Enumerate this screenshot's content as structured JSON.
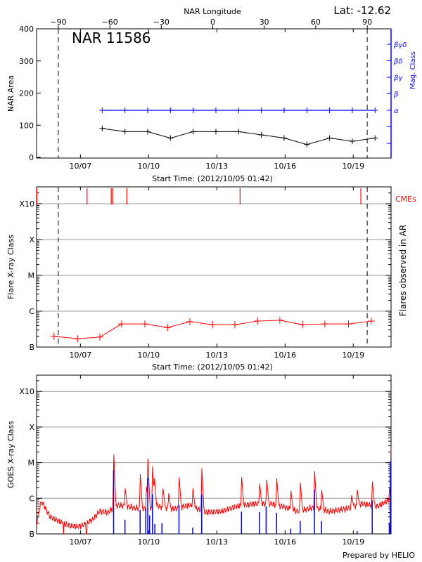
{
  "chart_data": [
    {
      "type": "line",
      "title": "NAR 11586",
      "annotation": "Lat: -12.62",
      "top_xlabel": "NAR Longitude",
      "top_xticks": [
        -90,
        -60,
        -30,
        0,
        30,
        60,
        90
      ],
      "limb_longitudes": [
        -90,
        90
      ],
      "xlabel": "Start Time: (2012/10/05 01:42)",
      "xticks": [
        "10/07 00:00",
        "10/10 00:00",
        "10/13 00:00",
        "10/16 00:00",
        "10/19 00:00"
      ],
      "xtick_labels": [
        "10/07",
        "10/10",
        "10/13",
        "10/16",
        "10/19"
      ],
      "ylabel": "NAR Area",
      "ylim": [
        0,
        400
      ],
      "yticks": [
        0,
        100,
        200,
        300,
        400
      ],
      "y2label": "Mag. Class",
      "y2_ticks": [
        "",
        "",
        "α",
        "β",
        "βγ",
        "βδ",
        "βγδ"
      ],
      "times": [
        "10/07 23:00",
        "10/08 23:00",
        "10/09 23:00",
        "10/10 23:00",
        "10/11 23:00",
        "10/12 23:00",
        "10/13 23:00",
        "10/14 23:00",
        "10/15 23:00",
        "10/16 23:00",
        "10/17 23:00",
        "10/18 23:00",
        "10/19 23:00"
      ],
      "series": [
        {
          "name": "NAR Area",
          "color": "#000000",
          "values": [
            90,
            80,
            80,
            60,
            80,
            80,
            80,
            70,
            60,
            40,
            60,
            50,
            60
          ]
        },
        {
          "name": "Mag. Class",
          "color": "#0000ff",
          "values": [
            "α",
            "α",
            "α",
            "α",
            "α",
            "α",
            "α",
            "α",
            "α",
            "α",
            "α",
            "α",
            "α"
          ]
        }
      ]
    },
    {
      "type": "line",
      "xlabel": "Start Time: (2012/10/05 01:42)",
      "xticks": [
        "10/07 00:00",
        "10/10 00:00",
        "10/13 00:00",
        "10/16 00:00",
        "10/19 00:00"
      ],
      "xtick_labels": [
        "10/07",
        "10/10",
        "10/13",
        "10/16",
        "10/19"
      ],
      "ylabel": "Flare X-ray Class",
      "y2label": "Flares observed in AR",
      "yscale": "log",
      "ytick_labels": [
        "B",
        "C",
        "M",
        "X",
        "X10"
      ],
      "grid": true,
      "cme_label": "CMEs",
      "cme_color": "#ff0000",
      "cme_times": [
        "10/05 02:00",
        "10/07 07:00",
        "10/08 08:30",
        "10/08 10:00",
        "10/09 01:00",
        "10/14 00:30",
        "10/19 08:00"
      ],
      "series_color": "#ff0000",
      "times": [
        "10/05 20:00",
        "10/06 21:00",
        "10/07 20:30",
        "10/08 19:30",
        "10/09 20:00",
        "10/10 20:00",
        "10/11 19:30",
        "10/12 19:30",
        "10/13 19:00",
        "10/14 19:00",
        "10/15 18:30",
        "10/16 18:30",
        "10/17 18:00",
        "10/18 19:00",
        "10/19 19:00"
      ],
      "flux": [
        2e-07,
        1.7e-07,
        1.9e-07,
        4.4e-07,
        4.4e-07,
        3.5e-07,
        5.1e-07,
        4.2e-07,
        4.2e-07,
        5.3e-07,
        5.6e-07,
        4.2e-07,
        4.4e-07,
        4.4e-07,
        5.3e-07
      ]
    },
    {
      "type": "line",
      "xticks": [
        "10/07 00:00",
        "10/10 00:00",
        "10/13 00:00",
        "10/16 00:00",
        "10/19 00:00"
      ],
      "xtick_labels": [
        "10/07",
        "10/10",
        "10/13",
        "10/16",
        "10/19"
      ],
      "ylabel": "GOES X-ray Class",
      "yscale": "log",
      "ytick_labels": [
        "B",
        "C",
        "M",
        "X",
        "X10"
      ],
      "grid": true,
      "credit": "Prepared by HELIO",
      "long_channel": {
        "color": "#ff0000",
        "baseline": [
          [
            "10/05 01:42",
            1.9e-07
          ],
          [
            "10/05 06:00",
            7.4e-07
          ],
          [
            "10/05 08:00",
            7.4e-07
          ],
          [
            "10/05 16:00",
            3e-07
          ],
          [
            "10/06 04:00",
            2.1e-07
          ],
          [
            "10/06 13:00",
            1.7e-07
          ],
          [
            "10/06 22:00",
            1.6e-07
          ],
          [
            "10/07 06:00",
            1.9e-07
          ],
          [
            "10/07 14:00",
            2.7e-07
          ],
          [
            "10/07 20:00",
            4.3e-07
          ],
          [
            "10/08 05:00",
            4e-07
          ],
          [
            "10/08 14:00",
            6.4e-07
          ],
          [
            "10/09 01:00",
            6e-07
          ],
          [
            "10/09 16:00",
            5e-07
          ],
          [
            "10/10 09:00",
            6e-07
          ],
          [
            "10/11 02:00",
            5e-07
          ],
          [
            "10/11 19:00",
            6.4e-07
          ],
          [
            "10/12 12:00",
            4e-07
          ],
          [
            "10/13 05:00",
            4.3e-07
          ],
          [
            "10/13 22:00",
            6e-07
          ],
          [
            "10/14 16:00",
            7e-07
          ],
          [
            "10/15 09:00",
            7e-07
          ],
          [
            "10/15 20:00",
            6e-07
          ],
          [
            "10/16 13:00",
            4.3e-07
          ],
          [
            "10/17 06:00",
            5.5e-07
          ],
          [
            "10/17 23:00",
            4.3e-07
          ],
          [
            "10/18 16:00",
            5e-07
          ],
          [
            "10/19 09:00",
            7e-07
          ],
          [
            "10/20 02:00",
            6e-07
          ],
          [
            "10/20 14:00",
            9e-07
          ]
        ],
        "peaks": [
          [
            "10/08 11:00",
            2.3e-05
          ],
          [
            "10/08 23:00",
            2.1e-06
          ],
          [
            "10/09 15:00",
            5.8e-06
          ],
          [
            "10/09 21:30",
            2.3e-06
          ],
          [
            "10/09 23:00",
            1.7e-05
          ],
          [
            "10/10 04:00",
            1e-05
          ],
          [
            "10/10 06:00",
            4.3e-06
          ],
          [
            "10/10 15:00",
            2.1e-06
          ],
          [
            "10/10 21:00",
            1.5e-06
          ],
          [
            "10/11 08:00",
            4.6e-06
          ],
          [
            "10/11 22:30",
            2.1e-06
          ],
          [
            "10/12 08:00",
            8.7e-06
          ],
          [
            "10/14 02:00",
            4.6e-06
          ],
          [
            "10/14 21:00",
            2.9e-06
          ],
          [
            "10/15 04:30",
            3.8e-06
          ],
          [
            "10/15 15:00",
            4.2e-06
          ],
          [
            "10/16 06:00",
            1.8e-06
          ],
          [
            "10/16 16:00",
            3.2e-06
          ],
          [
            "10/17 07:00",
            7.1e-06
          ],
          [
            "10/17 14:30",
            1.9e-06
          ],
          [
            "10/18 22:00",
            1.3e-06
          ],
          [
            "10/19 04:00",
            1.9e-06
          ],
          [
            "10/19 20:00",
            3.4e-06
          ],
          [
            "10/20 14:00",
            2.1e-06
          ],
          [
            "10/20 15:50",
            8.9e-05
          ]
        ],
        "gaps": [
          "10/06 06:00",
          "10/07 06:30"
        ]
      },
      "short_channel": {
        "color": "#0000ff",
        "spikes": [
          [
            "10/08 11:00",
            6.3e-06
          ],
          [
            "10/08 23:00",
            2.5e-07
          ],
          [
            "10/09 15:00",
            4.7e-07
          ],
          [
            "10/09 21:00",
            5e-07
          ],
          [
            "10/09 23:00",
            3.8e-06
          ],
          [
            "10/10 01:00",
            3.3e-07
          ],
          [
            "10/10 04:00",
            1.3e-06
          ],
          [
            "10/10 06:30",
            1.9e-07
          ],
          [
            "10/10 14:00",
            2e-07
          ],
          [
            "10/11 08:00",
            6.4e-07
          ],
          [
            "10/11 22:30",
            1.5e-07
          ],
          [
            "10/12 08:00",
            1.3e-06
          ],
          [
            "10/14 02:00",
            4.2e-07
          ],
          [
            "10/14 21:00",
            4.1e-07
          ],
          [
            "10/15 04:00",
            6e-07
          ],
          [
            "10/15 15:00",
            3.9e-07
          ],
          [
            "10/16 06:00",
            1.4e-07
          ],
          [
            "10/16 16:00",
            2.3e-07
          ],
          [
            "10/17 07:00",
            1.8e-06
          ],
          [
            "10/17 14:30",
            2.3e-07
          ],
          [
            "10/19 04:00",
            1.2e-07
          ],
          [
            "10/19 20:00",
            8.7e-07
          ],
          [
            "10/20 14:00",
            2e-07
          ],
          [
            "10/20 15:50",
            1.1e-05
          ]
        ]
      }
    }
  ]
}
